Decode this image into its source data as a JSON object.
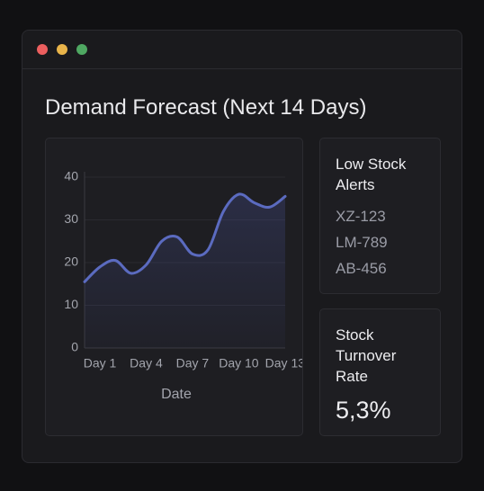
{
  "window": {
    "title": "Demand Forecast (Next 14 Days)"
  },
  "chart_data": {
    "type": "line",
    "x_label": "Date",
    "categories": [
      "Day 1",
      null,
      null,
      "Day 4",
      null,
      null,
      "Day 7",
      null,
      null,
      "Day 10",
      null,
      null,
      "Day 13",
      null
    ],
    "values": [
      15.5,
      19,
      20.5,
      17.5,
      19.5,
      25,
      26,
      22,
      23,
      32,
      36,
      34,
      33,
      35.5
    ],
    "color": "#5b6bc0",
    "ylim": [
      0,
      40
    ],
    "yticks": [
      0,
      10,
      20,
      30,
      40
    ],
    "grid": true
  },
  "alerts": {
    "title": "Low Stock Alerts",
    "items": [
      "XZ-123",
      "LM-789",
      "AB-456"
    ]
  },
  "turnover": {
    "title": "Stock Turnover Rate",
    "value": "5,3%"
  }
}
